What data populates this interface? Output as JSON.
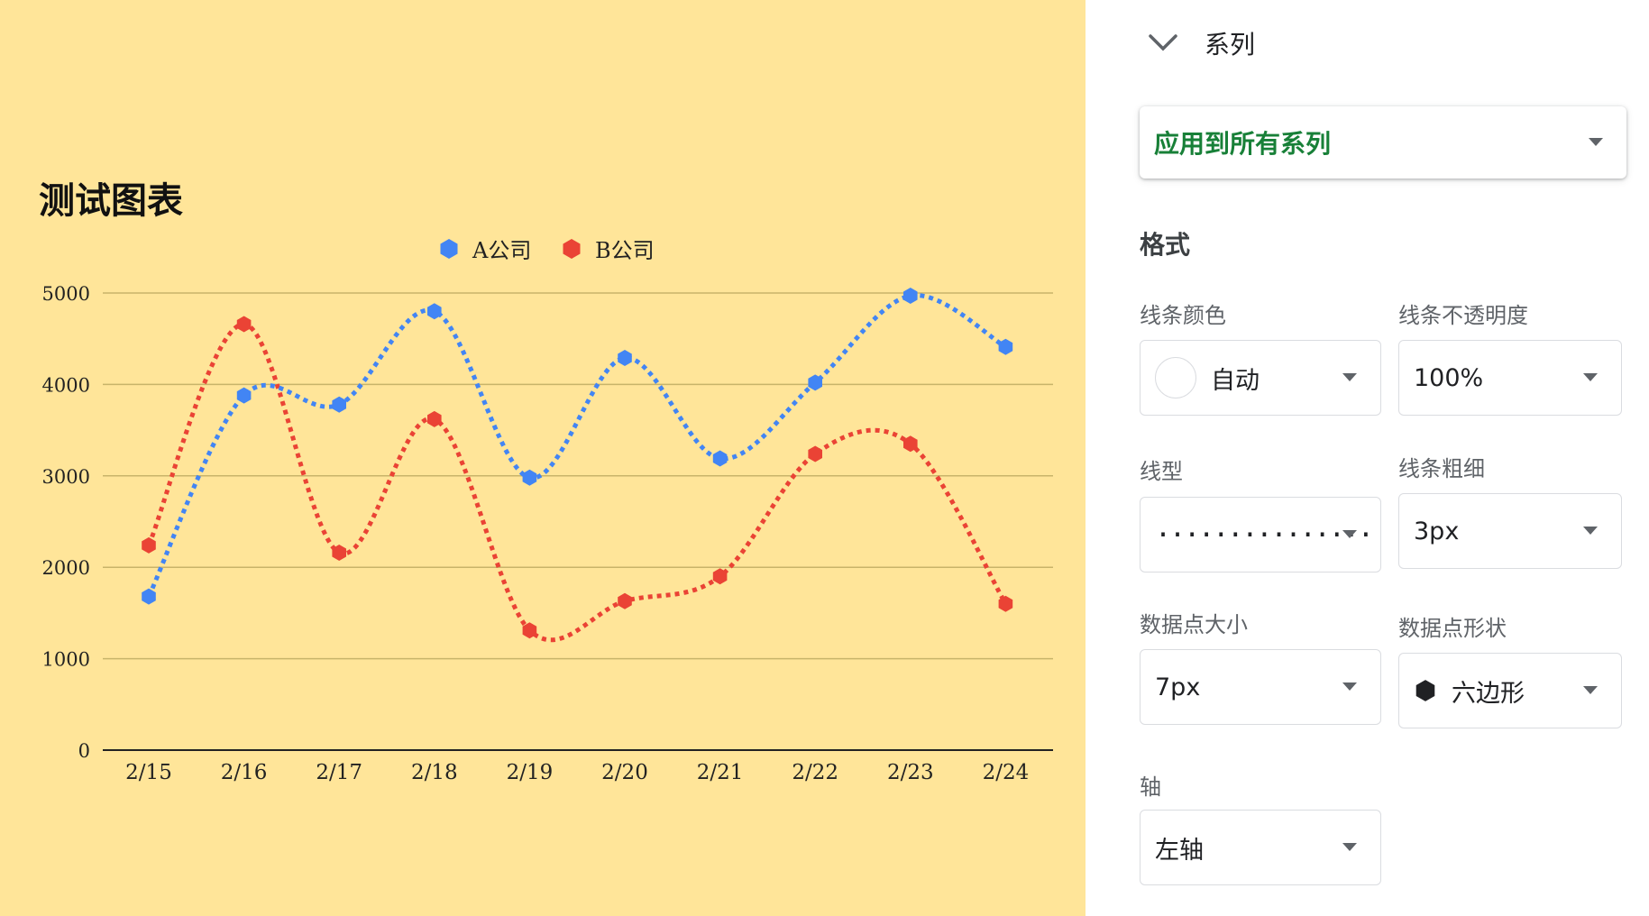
{
  "chart_data": {
    "type": "line",
    "title": "测试图表",
    "categories": [
      "2/15",
      "2/16",
      "2/17",
      "2/18",
      "2/19",
      "2/20",
      "2/21",
      "2/22",
      "2/23",
      "2/24"
    ],
    "series": [
      {
        "name": "A公司",
        "color": "#4285F4",
        "values": [
          1680,
          3880,
          3780,
          4800,
          2980,
          4290,
          3190,
          4020,
          4970,
          4410
        ]
      },
      {
        "name": "B公司",
        "color": "#EA4335",
        "values": [
          2240,
          4660,
          2160,
          3620,
          1310,
          1630,
          1900,
          3240,
          3350,
          1600
        ]
      }
    ],
    "ylim": [
      0,
      5000
    ],
    "yticks": [
      "0",
      "1000",
      "2000",
      "3000",
      "4000",
      "5000"
    ],
    "line_style": "dotted",
    "smooth": true,
    "point_shape": "hexagon",
    "legend_position": "top",
    "grid": true,
    "background": "#FFE599"
  },
  "panel": {
    "section_title": "系列",
    "apply_select": "应用到所有系列",
    "format_heading": "格式",
    "line_color_label": "线条颜色",
    "line_color_value": "自动",
    "line_opacity_label": "线条不透明度",
    "line_opacity_value": "100%",
    "line_type_label": "线型",
    "line_type_value": "...............",
    "line_width_label": "线条粗细",
    "line_width_value": "3px",
    "point_size_label": "数据点大小",
    "point_size_value": "7px",
    "point_shape_label": "数据点形状",
    "point_shape_value": "六边形",
    "axis_label": "轴",
    "axis_value": "左轴"
  }
}
